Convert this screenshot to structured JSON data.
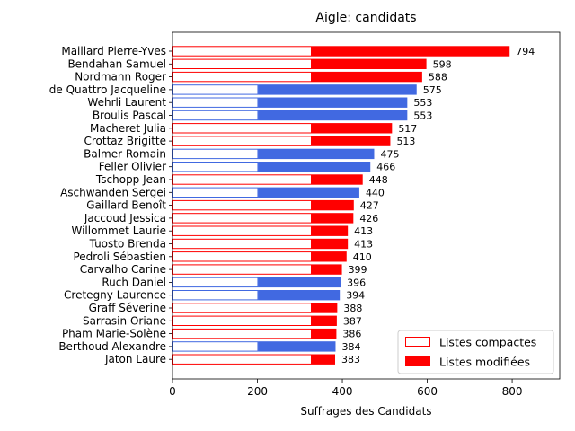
{
  "chart_data": {
    "type": "bar",
    "orientation": "horizontal",
    "stacked": true,
    "title": "Aigle: candidats",
    "xlabel": "Suffrages des Candidats",
    "ylabel": "",
    "xlim": [
      0,
      912
    ],
    "xticks": [
      0,
      200,
      400,
      600,
      800
    ],
    "grid": false,
    "legend_position": "lower-right",
    "colors": {
      "red": "#ff0000",
      "blue": "#4169e1",
      "compact_fill": "#ffffff"
    },
    "legend": [
      {
        "label": "Listes compactes",
        "style": "outline"
      },
      {
        "label": "Listes modifiées",
        "style": "filled"
      }
    ],
    "categories": [
      "Maillard Pierre-Yves",
      "Bendahan Samuel",
      "Nordmann Roger",
      "de Quattro Jacqueline",
      "Wehrli Laurent",
      "Broulis Pascal",
      "Macheret Julia",
      "Crottaz Brigitte",
      "Balmer Romain",
      "Feller Olivier",
      "Tschopp Jean",
      "Aschwanden Sergei",
      "Gaillard Benoît",
      "Jaccoud Jessica",
      "Willommet Laurie",
      "Tuosto Brenda",
      "Pedroli Sébastien",
      "Carvalho Carine",
      "Ruch Daniel",
      "Cretegny Laurence",
      "Graff Séverine",
      "Sarrasin Oriane",
      "Pham Marie-Solène",
      "Berthoud Alexandre",
      "Jaton Laure"
    ],
    "totals": [
      794,
      598,
      588,
      575,
      553,
      553,
      517,
      513,
      475,
      466,
      448,
      440,
      427,
      426,
      413,
      413,
      410,
      399,
      396,
      394,
      388,
      387,
      386,
      384,
      383
    ],
    "compact": [
      328,
      328,
      328,
      202,
      202,
      202,
      328,
      328,
      202,
      202,
      328,
      202,
      328,
      328,
      328,
      328,
      328,
      328,
      202,
      202,
      328,
      328,
      328,
      202,
      328
    ],
    "series_colors": [
      "red",
      "red",
      "red",
      "blue",
      "blue",
      "blue",
      "red",
      "red",
      "blue",
      "blue",
      "red",
      "blue",
      "red",
      "red",
      "red",
      "red",
      "red",
      "red",
      "blue",
      "blue",
      "red",
      "red",
      "red",
      "blue",
      "red"
    ]
  }
}
